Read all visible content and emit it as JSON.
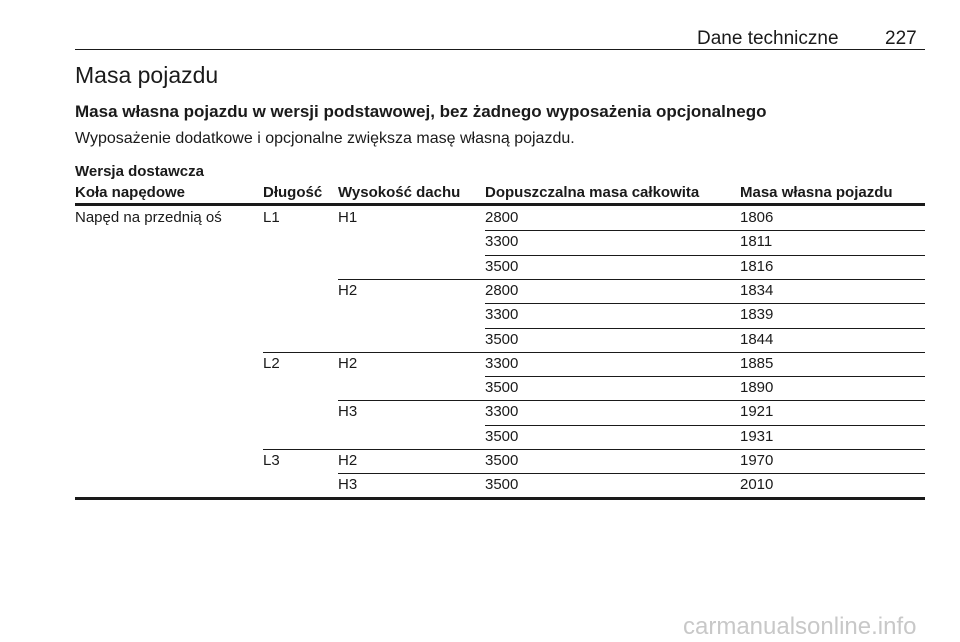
{
  "header": {
    "section": "Dane techniczne",
    "page": 227
  },
  "title": "Masa pojazdu",
  "subtitle": "Masa własna pojazdu w wersji podstawowej, bez żadnego wyposażenia opcjonalnego",
  "note": "Wyposażenie dodatkowe i opcjonalne zwiększa masę własną pojazdu.",
  "table": {
    "caption": "Wersja dostawcza",
    "columns": [
      "Koła napędowe",
      "Długość",
      "Wysokość dachu",
      "Dopuszczalna masa całkowita",
      "Masa własna pojazdu"
    ],
    "rows": [
      {
        "drive": "Napęd na przednią oś",
        "length": "L1",
        "roof": "H1",
        "gvw": 2800,
        "mass": 1806
      },
      {
        "gvw": 3300,
        "mass": 1811
      },
      {
        "gvw": 3500,
        "mass": 1816
      },
      {
        "roof": "H2",
        "gvw": 2800,
        "mass": 1834
      },
      {
        "gvw": 3300,
        "mass": 1839
      },
      {
        "gvw": 3500,
        "mass": 1844
      },
      {
        "length": "L2",
        "roof": "H2",
        "gvw": 3300,
        "mass": 1885
      },
      {
        "gvw": 3500,
        "mass": 1890
      },
      {
        "roof": "H3",
        "gvw": 3300,
        "mass": 1921
      },
      {
        "gvw": 3500,
        "mass": 1931
      },
      {
        "length": "L3",
        "roof": "H2",
        "gvw": 3500,
        "mass": 1970
      },
      {
        "roof": "H3",
        "gvw": 3500,
        "mass": 2010
      }
    ]
  },
  "watermark": "carmanualsonline.info"
}
